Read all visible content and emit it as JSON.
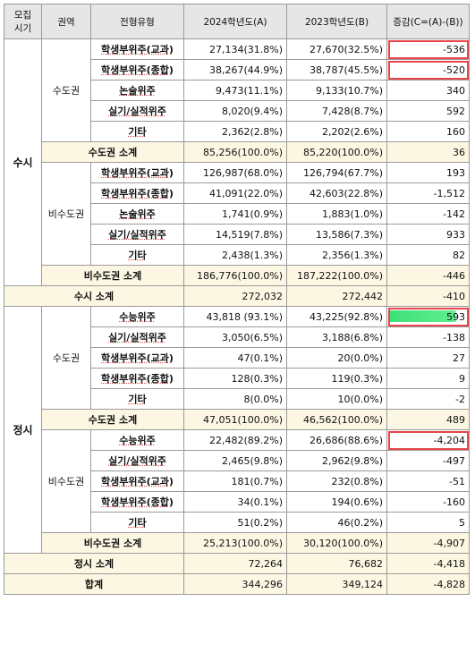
{
  "header": [
    "모집\n시기",
    "권역",
    "전형유형",
    "2024학년도(A)",
    "2023학년도(B)",
    "증감(C=(A)-(B))"
  ],
  "sections": [
    {
      "period": "수시",
      "regions": [
        {
          "region": "수도권",
          "rows": [
            [
              "학생부위주(교과)",
              "27,134(31.8%)",
              "27,670(32.5%)",
              "-536"
            ],
            [
              "학생부위주(종합)",
              "38,267(44.9%)",
              "38,787(45.5%)",
              "-520"
            ],
            [
              "논술위주",
              "9,473(11.1%)",
              "9,133(10.7%)",
              "340"
            ],
            [
              "실기/실적위주",
              "8,020(9.4%)",
              "7,428(8.7%)",
              "592"
            ],
            [
              "기타",
              "2,362(2.8%)",
              "2,202(2.6%)",
              "160"
            ]
          ],
          "subtotal": [
            "수도권 소계",
            "85,256(100.0%)",
            "85,220(100.0%)",
            "36"
          ]
        },
        {
          "region": "비수도권",
          "rows": [
            [
              "학생부위주(교과)",
              "126,987(68.0%)",
              "126,794(67.7%)",
              "193"
            ],
            [
              "학생부위주(종합)",
              "41,091(22.0%)",
              "42,603(22.8%)",
              "-1,512"
            ],
            [
              "논술위주",
              "1,741(0.9%)",
              "1,883(1.0%)",
              "-142"
            ],
            [
              "실기/실적위주",
              "14,519(7.8%)",
              "13,586(7.3%)",
              "933"
            ],
            [
              "기타",
              "2,438(1.3%)",
              "2,356(1.3%)",
              "82"
            ]
          ],
          "subtotal": [
            "비수도권 소계",
            "186,776(100.0%)",
            "187,222(100.0%)",
            "-446"
          ]
        }
      ],
      "subtotal": [
        "수시 소계",
        "272,032",
        "272,442",
        "-410"
      ]
    },
    {
      "period": "정시",
      "regions": [
        {
          "region": "수도권",
          "rows": [
            [
              "수능위주",
              "43,818 (93.1%)",
              "43,225(92.8%)",
              "593"
            ],
            [
              "실기/실적위주",
              "3,050(6.5%)",
              "3,188(6.8%)",
              "-138"
            ],
            [
              "학생부위주(교과)",
              "47(0.1%)",
              "20(0.0%)",
              "27"
            ],
            [
              "학생부위주(종합)",
              "128(0.3%)",
              "119(0.3%)",
              "9"
            ],
            [
              "기타",
              "8(0.0%)",
              "10(0.0%)",
              "-2"
            ]
          ],
          "subtotal": [
            "수도권 소계",
            "47,051(100.0%)",
            "46,562(100.0%)",
            "489"
          ]
        },
        {
          "region": "비수도권",
          "rows": [
            [
              "수능위주",
              "22,482(89.2%)",
              "26,686(88.6%)",
              "-4,204"
            ],
            [
              "실기/실적위주",
              "2,465(9.8%)",
              "2,962(9.8%)",
              "-497"
            ],
            [
              "학생부위주(교과)",
              "181(0.7%)",
              "232(0.8%)",
              "-51"
            ],
            [
              "학생부위주(종합)",
              "34(0.1%)",
              "194(0.6%)",
              "-160"
            ],
            [
              "기타",
              "51(0.2%)",
              "46(0.2%)",
              "5"
            ]
          ],
          "subtotal": [
            "비수도권 소계",
            "25,213(100.0%)",
            "30,120(100.0%)",
            "-4,907"
          ]
        }
      ],
      "subtotal": [
        "정시 소계",
        "72,264",
        "76,682",
        "-4,418"
      ]
    }
  ],
  "total": [
    "합계",
    "344,296",
    "349,124",
    "-4,828"
  ]
}
